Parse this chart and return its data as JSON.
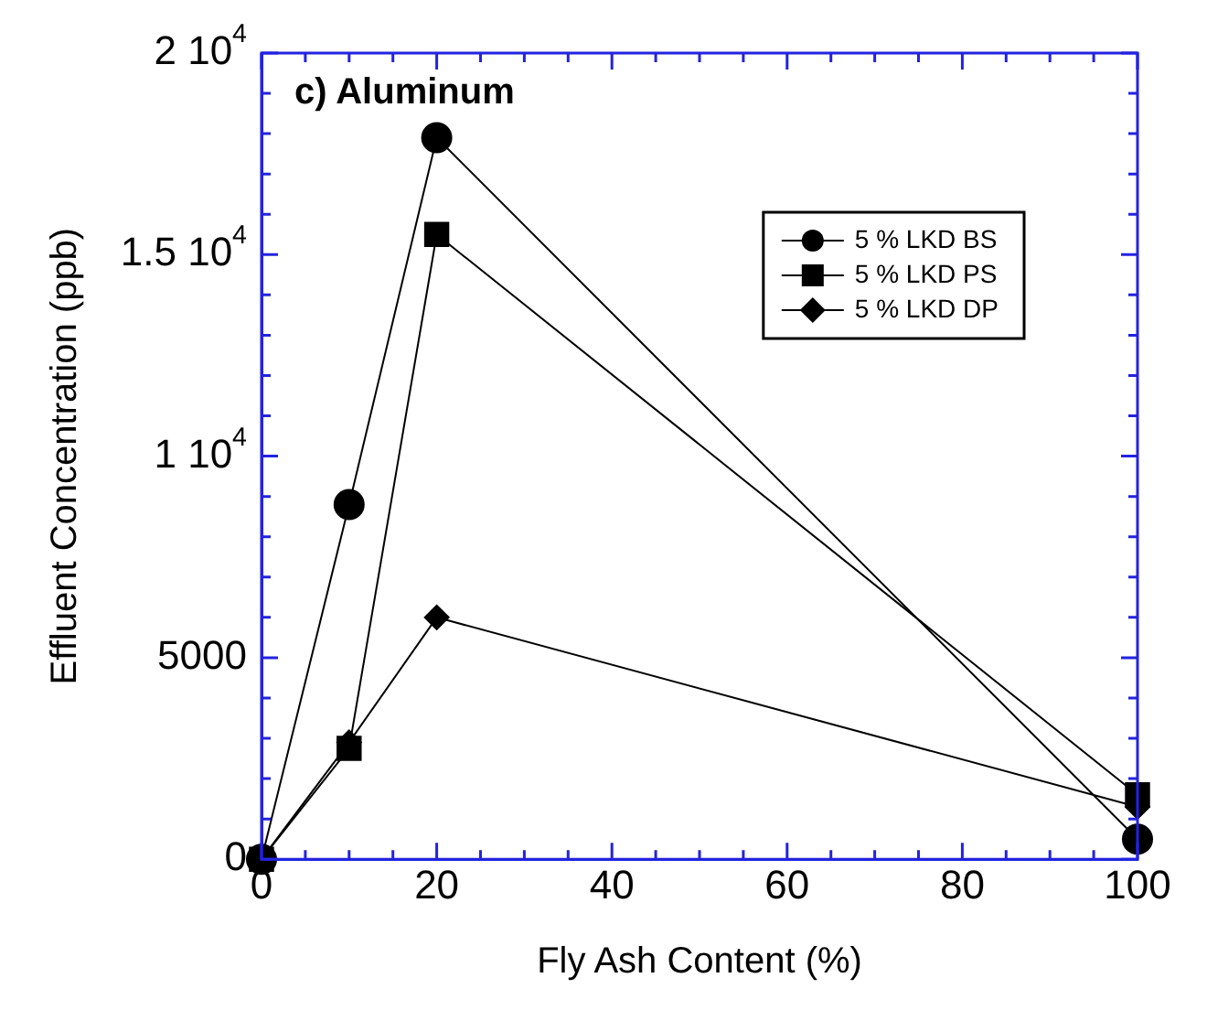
{
  "chart_data": {
    "type": "line",
    "title": "c) Aluminum",
    "xlabel": "Fly Ash Content (%)",
    "ylabel": "Effluent Concentration (ppb)",
    "x": [
      0,
      10,
      20,
      100
    ],
    "series": [
      {
        "name": "5 % LKD BS",
        "color": "#000000",
        "marker": "circle",
        "values": [
          0,
          8800,
          17900,
          500
        ]
      },
      {
        "name": "5 % LKD PS",
        "color": "#000000",
        "marker": "square",
        "values": [
          0,
          2750,
          15500,
          1600
        ]
      },
      {
        "name": "5 % LKD DP",
        "color": "#000000",
        "marker": "diamond",
        "values": [
          0,
          2900,
          6000,
          1300
        ]
      }
    ],
    "xlim": [
      0,
      100
    ],
    "ylim": [
      0,
      20000
    ],
    "xticks": [
      0,
      {
        "value": 5,
        "label": null
      },
      {
        "value": 10,
        "label": null
      },
      {
        "value": 15,
        "label": null
      },
      20,
      {
        "value": 25,
        "label": null
      },
      {
        "value": 30,
        "label": null
      },
      {
        "value": 35,
        "label": null
      },
      40,
      {
        "value": 45,
        "label": null
      },
      {
        "value": 50,
        "label": null
      },
      {
        "value": 55,
        "label": null
      },
      60,
      {
        "value": 65,
        "label": null
      },
      {
        "value": 70,
        "label": null
      },
      {
        "value": 75,
        "label": null
      },
      80,
      {
        "value": 85,
        "label": null
      },
      {
        "value": 90,
        "label": null
      },
      {
        "value": 95,
        "label": null
      },
      100
    ],
    "yticks": [
      0,
      {
        "value": 1000,
        "label": null
      },
      {
        "value": 2000,
        "label": null
      },
      {
        "value": 3000,
        "label": null
      },
      {
        "value": 4000,
        "label": null
      },
      5000,
      {
        "value": 6000,
        "label": null
      },
      {
        "value": 7000,
        "label": null
      },
      {
        "value": 8000,
        "label": null
      },
      {
        "value": 9000,
        "label": null
      },
      {
        "value": 10000,
        "label": "1 10$^{4}$"
      },
      {
        "value": 11000,
        "label": null
      },
      {
        "value": 12000,
        "label": null
      },
      {
        "value": 13000,
        "label": null
      },
      {
        "value": 14000,
        "label": null
      },
      {
        "value": 15000,
        "label": "1.5 10$^{4}$"
      },
      {
        "value": 16000,
        "label": null
      },
      {
        "value": 17000,
        "label": null
      },
      {
        "value": 18000,
        "label": null
      },
      {
        "value": 19000,
        "label": null
      },
      {
        "value": 20000,
        "label": "2 10$^{4}$"
      }
    ],
    "grid": false,
    "legend": "top right",
    "line_style": "solid"
  }
}
